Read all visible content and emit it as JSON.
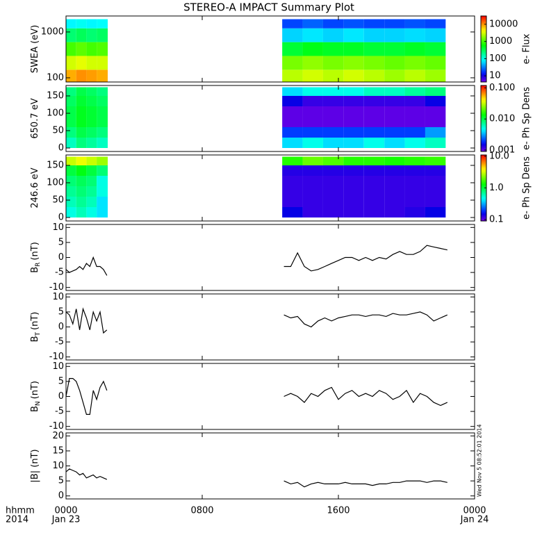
{
  "title": "STEREO-A IMPACT Summary Plot",
  "annotation": "Wed Nov  5 08:52:01 2014",
  "x_axis_labels": [
    "hhmm",
    "2014"
  ],
  "dates": [
    {
      "value": 0,
      "label": "Jan 23"
    },
    {
      "value": 24,
      "label": "Jan 24"
    }
  ],
  "chart_data": [
    {
      "type": "heatmap",
      "ylabel": "SWEA (eV)",
      "ylog": true,
      "ylim": [
        81,
        2230
      ],
      "yticks": [
        100,
        1000
      ],
      "xlim": [
        0,
        24
      ],
      "xticks": [
        0,
        8,
        16,
        24
      ],
      "x_bins": [
        0,
        0.6,
        1.2,
        1.8,
        2.45,
        12.7,
        13.9,
        15.1,
        16.3,
        17.5,
        18.7,
        19.9,
        21.1,
        22.3
      ],
      "y_bins": [
        81,
        150,
        300,
        600,
        1200,
        1900
      ],
      "z": [
        [
          8000,
          10000,
          9000,
          8000,
          null,
          2500,
          3000,
          2500,
          3000,
          2500,
          2000,
          2500,
          2000
        ],
        [
          3000,
          3500,
          3000,
          3000,
          null,
          1500,
          1800,
          1500,
          1700,
          1500,
          1300,
          1500,
          1300
        ],
        [
          1000,
          1200,
          1000,
          1100,
          null,
          400,
          500,
          450,
          450,
          400,
          400,
          450,
          400
        ],
        [
          250,
          300,
          250,
          280,
          null,
          60,
          70,
          60,
          70,
          60,
          60,
          65,
          60
        ],
        [
          80,
          90,
          80,
          85,
          null,
          20,
          25,
          20,
          22,
          20,
          20,
          22,
          20
        ]
      ],
      "zlim": [
        4.4,
        30200
      ],
      "zticks": [
        10,
        100,
        1000,
        10000
      ],
      "zlabel": "e- Flux"
    },
    {
      "type": "heatmap",
      "ylabel": "650.7 eV",
      "ylim": [
        -10,
        180
      ],
      "yticks": [
        0,
        50,
        100,
        150
      ],
      "xlim": [
        0,
        24
      ],
      "xticks": [
        0,
        8,
        16,
        24
      ],
      "x_bins": [
        0,
        0.6,
        1.2,
        1.8,
        2.45,
        12.7,
        13.9,
        15.1,
        16.3,
        17.5,
        18.7,
        19.9,
        21.1,
        22.3
      ],
      "y_bins": [
        0,
        30,
        60,
        90,
        120,
        150,
        175
      ],
      "z": [
        [
          0.006,
          0.008,
          0.007,
          0.006,
          null,
          0.004,
          0.005,
          0.004,
          0.004,
          0.005,
          0.004,
          0.005,
          0.006
        ],
        [
          0.008,
          0.01,
          0.009,
          0.008,
          null,
          0.002,
          0.002,
          0.002,
          0.002,
          0.002,
          0.002,
          0.002,
          0.003
        ],
        [
          0.01,
          0.012,
          0.011,
          0.01,
          null,
          0.001,
          0.001,
          0.001,
          0.001,
          0.001,
          0.001,
          0.001,
          0.001
        ],
        [
          0.01,
          0.012,
          0.011,
          0.01,
          null,
          0.001,
          0.001,
          0.001,
          0.001,
          0.001,
          0.001,
          0.001,
          0.001
        ],
        [
          0.009,
          0.011,
          0.01,
          0.009,
          null,
          0.0015,
          0.0012,
          0.0012,
          0.0012,
          0.0012,
          0.0012,
          0.0012,
          0.0015
        ],
        [
          0.008,
          0.01,
          0.009,
          0.008,
          null,
          0.004,
          0.005,
          0.005,
          0.005,
          0.006,
          0.006,
          0.007,
          0.008
        ]
      ],
      "zlim": [
        0.0009,
        0.12
      ],
      "zticks": [
        {
          "value": 0.001,
          "label": "0.001"
        },
        {
          "value": 0.01,
          "label": "0.010"
        },
        {
          "value": 0.1,
          "label": "0.100"
        }
      ],
      "zlabel": "e- Ph Sp Dens"
    },
    {
      "type": "heatmap",
      "ylabel": "246.6 eV",
      "ylim": [
        -10,
        180
      ],
      "yticks": [
        0,
        50,
        100,
        150
      ],
      "xlim": [
        0,
        24
      ],
      "xticks": [
        0,
        8,
        16,
        24
      ],
      "x_bins": [
        0,
        0.6,
        1.2,
        1.8,
        2.45,
        12.7,
        13.9,
        15.1,
        16.3,
        17.5,
        18.7,
        19.9,
        21.1,
        22.3
      ],
      "y_bins": [
        0,
        30,
        60,
        90,
        120,
        150,
        175
      ],
      "z": [
        [
          0.5,
          0.6,
          0.5,
          0.4,
          null,
          0.15,
          0.12,
          0.12,
          0.12,
          0.12,
          0.12,
          0.13,
          0.15
        ],
        [
          0.6,
          0.7,
          0.6,
          0.4,
          null,
          0.12,
          0.12,
          0.12,
          0.12,
          0.12,
          0.12,
          0.12,
          0.12
        ],
        [
          0.7,
          0.8,
          0.7,
          0.5,
          null,
          0.12,
          0.12,
          0.12,
          0.12,
          0.12,
          0.12,
          0.12,
          0.12
        ],
        [
          0.8,
          0.9,
          0.8,
          0.5,
          null,
          0.12,
          0.12,
          0.12,
          0.12,
          0.12,
          0.12,
          0.12,
          0.12
        ],
        [
          1.0,
          1.2,
          1.0,
          0.8,
          null,
          0.13,
          0.13,
          0.13,
          0.13,
          0.13,
          0.13,
          0.13,
          0.13
        ],
        [
          3,
          3.5,
          3,
          2.5,
          null,
          1.5,
          2,
          1.8,
          1.5,
          1.5,
          1.4,
          1.5,
          1.6
        ]
      ],
      "zlim": [
        0.09,
        11
      ],
      "zticks": [
        {
          "value": 0.1,
          "label": "0.1"
        },
        {
          "value": 1,
          "label": "1.0"
        },
        {
          "value": 10,
          "label": "10.0"
        }
      ],
      "zlabel": "e- Ph Sp Dens"
    },
    {
      "type": "line",
      "ylabel": "B",
      "ylabel_sub": "R",
      "ylabel_unit": "(nT)",
      "color": "#000000",
      "ylim": [
        -11,
        11
      ],
      "yticks": [
        -10,
        -5,
        0,
        5,
        10
      ],
      "xlim": [
        0,
        24
      ],
      "xticks": [
        0,
        8,
        16,
        24
      ],
      "x": [
        0,
        0.2,
        0.4,
        0.6,
        0.8,
        1.0,
        1.2,
        1.4,
        1.6,
        1.8,
        2.0,
        2.2,
        2.4,
        7,
        12.8,
        13.2,
        13.6,
        14.0,
        14.4,
        14.8,
        15.2,
        15.6,
        16.0,
        16.4,
        16.8,
        17.2,
        17.6,
        18.0,
        18.4,
        18.8,
        19.2,
        19.6,
        20.0,
        20.4,
        20.8,
        21.2,
        21.6,
        22.0,
        22.4
      ],
      "values": [
        -4,
        -5,
        -4.5,
        -4,
        -3,
        -4,
        -2,
        -3,
        0,
        -3,
        -3,
        -4,
        -6,
        null,
        -3,
        -3,
        1.5,
        -3,
        -4.5,
        -4,
        -3,
        -2,
        -1,
        0,
        0,
        -1,
        0,
        -1,
        0,
        -0.5,
        1,
        2,
        1,
        1,
        2,
        4,
        3.5,
        3,
        2.5
      ]
    },
    {
      "type": "line",
      "ylabel": "B",
      "ylabel_sub": "T",
      "ylabel_unit": "(nT)",
      "color": "#000000",
      "ylim": [
        -11,
        11
      ],
      "yticks": [
        -10,
        -5,
        0,
        5,
        10
      ],
      "xlim": [
        0,
        24
      ],
      "xticks": [
        0,
        8,
        16,
        24
      ],
      "x": [
        0,
        0.2,
        0.4,
        0.6,
        0.8,
        1.0,
        1.2,
        1.4,
        1.6,
        1.8,
        2.0,
        2.2,
        2.4,
        7,
        12.8,
        13.2,
        13.6,
        14.0,
        14.4,
        14.8,
        15.2,
        15.6,
        16.0,
        16.4,
        16.8,
        17.2,
        17.6,
        18.0,
        18.4,
        18.8,
        19.2,
        19.6,
        20.0,
        20.4,
        20.8,
        21.2,
        21.6,
        22.0,
        22.4
      ],
      "values": [
        5,
        4,
        1,
        6,
        -1,
        6,
        3,
        -1,
        5,
        2,
        5,
        -2,
        -1,
        null,
        4,
        3,
        3.5,
        1,
        0,
        2,
        3,
        2,
        3,
        3.5,
        4,
        4,
        3.5,
        4,
        4,
        3.5,
        4.5,
        4,
        4,
        4.5,
        5,
        4,
        2,
        3,
        4
      ]
    },
    {
      "type": "line",
      "ylabel": "B",
      "ylabel_sub": "N",
      "ylabel_unit": "(nT)",
      "color": "#000000",
      "ylim": [
        -11,
        11
      ],
      "yticks": [
        -10,
        -5,
        0,
        5,
        10
      ],
      "xlim": [
        0,
        24
      ],
      "xticks": [
        0,
        8,
        16,
        24
      ],
      "x": [
        0,
        0.2,
        0.4,
        0.6,
        0.8,
        1.0,
        1.2,
        1.4,
        1.6,
        1.8,
        2.0,
        2.2,
        2.4,
        7,
        12.8,
        13.2,
        13.6,
        14.0,
        14.4,
        14.8,
        15.2,
        15.6,
        16.0,
        16.4,
        16.8,
        17.2,
        17.6,
        18.0,
        18.4,
        18.8,
        19.2,
        19.6,
        20.0,
        20.4,
        20.8,
        21.2,
        21.6,
        22.0,
        22.4
      ],
      "values": [
        0,
        6,
        6,
        5,
        2,
        -2,
        -6,
        -6,
        2,
        -1,
        3,
        5,
        2,
        null,
        0,
        1,
        0,
        -2,
        1,
        0,
        2,
        3,
        -1,
        1,
        2,
        0,
        1,
        0,
        2,
        1,
        -1,
        0,
        2,
        -2,
        1,
        0,
        -2,
        -3,
        -2
      ]
    },
    {
      "type": "line",
      "ylabel": "|B| (nT)",
      "color": "#000000",
      "ylim": [
        -1,
        21
      ],
      "yticks": [
        0,
        5,
        10,
        15,
        20
      ],
      "xlim": [
        0,
        24
      ],
      "xticks": [
        {
          "value": 0,
          "label": "0000"
        },
        {
          "value": 8,
          "label": "0800"
        },
        {
          "value": 16,
          "label": "1600"
        },
        {
          "value": 24,
          "label": "0000"
        }
      ],
      "x": [
        0,
        0.2,
        0.4,
        0.6,
        0.8,
        1.0,
        1.2,
        1.4,
        1.6,
        1.8,
        2.0,
        2.2,
        2.4,
        7,
        12.8,
        13.2,
        13.6,
        14.0,
        14.4,
        14.8,
        15.2,
        15.6,
        16.0,
        16.4,
        16.8,
        17.2,
        17.6,
        18.0,
        18.4,
        18.8,
        19.2,
        19.6,
        20.0,
        20.4,
        20.8,
        21.2,
        21.6,
        22.0,
        22.4
      ],
      "values": [
        8,
        9,
        8.5,
        8,
        7,
        7.5,
        6,
        6.5,
        7,
        6,
        6.5,
        6,
        5.5,
        null,
        5,
        4,
        4.5,
        3,
        4,
        4.5,
        4,
        4,
        4,
        4.5,
        4,
        4,
        4,
        3.5,
        4,
        4,
        4.5,
        4.5,
        5,
        5,
        5,
        4.5,
        5,
        5,
        4.5
      ]
    }
  ]
}
